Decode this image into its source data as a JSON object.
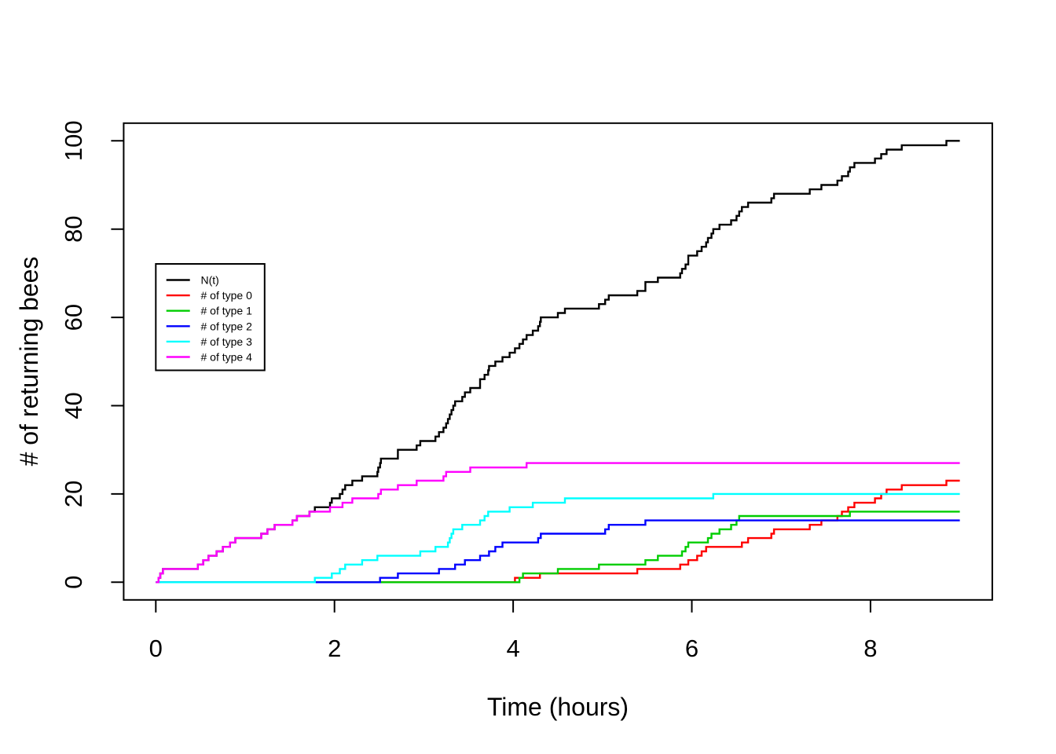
{
  "figure": {
    "background": "#ffffff",
    "plot_border_color": "#000000"
  },
  "chart_data": {
    "type": "line",
    "line_style": "step-post",
    "title": "",
    "xlabel": "Time (hours)",
    "ylabel": "# of returning bees",
    "xlim": [
      0,
      9
    ],
    "ylim": [
      0,
      100
    ],
    "x_ticks": [
      0,
      2,
      4,
      6,
      8
    ],
    "y_ticks": [
      0,
      20,
      40,
      60,
      80,
      100
    ],
    "grid": false,
    "legend_position": "inside-left-middle",
    "t_start": 0,
    "t_end": 9.0,
    "description": "Cumulative counting processes of returning bees by forager type; N(t) is the total (sum of types 0-4). Each series starts at 0 and steps up by 1 at each arrival time.",
    "series": [
      {
        "name": "N(t)",
        "color": "#000000",
        "role": "total-sum-of-all-types",
        "final_value": 100
      },
      {
        "name": "# of type 0",
        "color": "#FF0000",
        "final_value": 23,
        "arrival_times": [
          4.02,
          4.3,
          5.39,
          5.87,
          5.96,
          6.06,
          6.11,
          6.16,
          6.56,
          6.63,
          6.89,
          6.92,
          7.32,
          7.45,
          7.63,
          7.68,
          7.75,
          7.82,
          8.05,
          8.12,
          8.18,
          8.35,
          8.85
        ]
      },
      {
        "name": "# of type 1",
        "color": "#00CD00",
        "final_value": 16,
        "arrival_times": [
          4.07,
          4.11,
          4.5,
          4.96,
          5.48,
          5.62,
          5.89,
          5.93,
          5.96,
          6.18,
          6.22,
          6.31,
          6.44,
          6.5,
          6.53,
          7.77
        ]
      },
      {
        "name": "# of type 2",
        "color": "#0000FF",
        "final_value": 14,
        "arrival_times": [
          2.51,
          2.71,
          3.17,
          3.35,
          3.46,
          3.63,
          3.73,
          3.8,
          3.88,
          4.28,
          4.31,
          5.03,
          5.07,
          5.48
        ]
      },
      {
        "name": "# of type 3",
        "color": "#00FFFF",
        "final_value": 20,
        "arrival_times": [
          1.78,
          1.97,
          2.06,
          2.12,
          2.31,
          2.48,
          2.96,
          3.13,
          3.27,
          3.29,
          3.31,
          3.33,
          3.43,
          3.63,
          3.68,
          3.72,
          3.96,
          4.22,
          4.58,
          6.24
        ]
      },
      {
        "name": "# of type 4",
        "color": "#FF00FF",
        "final_value": 27,
        "arrival_times": [
          0.03,
          0.05,
          0.08,
          0.47,
          0.53,
          0.59,
          0.68,
          0.75,
          0.83,
          0.89,
          1.18,
          1.25,
          1.33,
          1.53,
          1.58,
          1.72,
          1.95,
          2.09,
          2.2,
          2.49,
          2.52,
          2.71,
          2.92,
          3.22,
          3.25,
          3.52,
          4.15
        ]
      }
    ]
  }
}
